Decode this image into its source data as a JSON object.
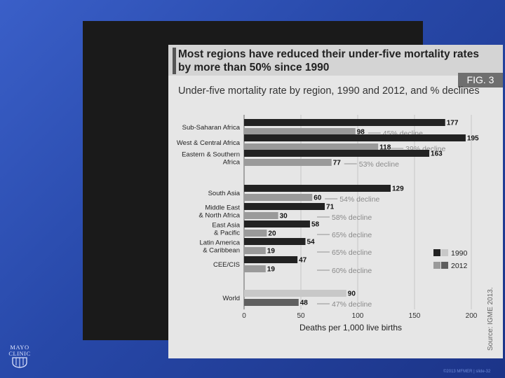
{
  "logo": {
    "line1": "MAYO",
    "line2": "CLINIC"
  },
  "footer": "©2013 MFMER | slide-32",
  "chart_data": {
    "type": "bar",
    "headline": "Most regions have reduced their under-five mortality rates by more than 50% since 1990",
    "fig_label": "FIG. 3",
    "title": "Under-five mortality rate by region, 1990 and 2012, and % declines",
    "xlabel": "Deaths per 1,000 live births",
    "ylabel": "",
    "orientation": "horizontal",
    "xlim": [
      0,
      200
    ],
    "xticks": [
      0,
      50,
      100,
      150,
      200
    ],
    "grid": true,
    "legend": "bottom-right",
    "source": "Source: IGME 2013.",
    "categories": [
      [
        "Sub-Saharan Africa"
      ],
      [
        "West & Central Africa"
      ],
      [
        "Eastern & Southern",
        "Africa"
      ],
      [
        "South Asia"
      ],
      [
        "Middle East",
        "& North Africa"
      ],
      [
        "East Asia",
        "& Pacific"
      ],
      [
        "Latin America",
        "& Caribbean"
      ],
      [
        "CEE/CIS"
      ],
      [
        "World"
      ]
    ],
    "series": [
      {
        "name": "1990",
        "color": "#222222",
        "world_color": "#c8c8c8",
        "values": [
          177,
          195,
          163,
          129,
          71,
          58,
          54,
          47,
          90
        ]
      },
      {
        "name": "2012",
        "color": "#9a9a9a",
        "world_color": "#5f5f5f",
        "values": [
          98,
          118,
          77,
          60,
          30,
          20,
          19,
          19,
          48
        ]
      }
    ],
    "annotations": [
      "45% decline",
      "39% decline",
      "53% decline",
      "54% decline",
      "58% decline",
      "65% decline",
      "65% decline",
      "60% decline",
      "47% decline"
    ]
  }
}
